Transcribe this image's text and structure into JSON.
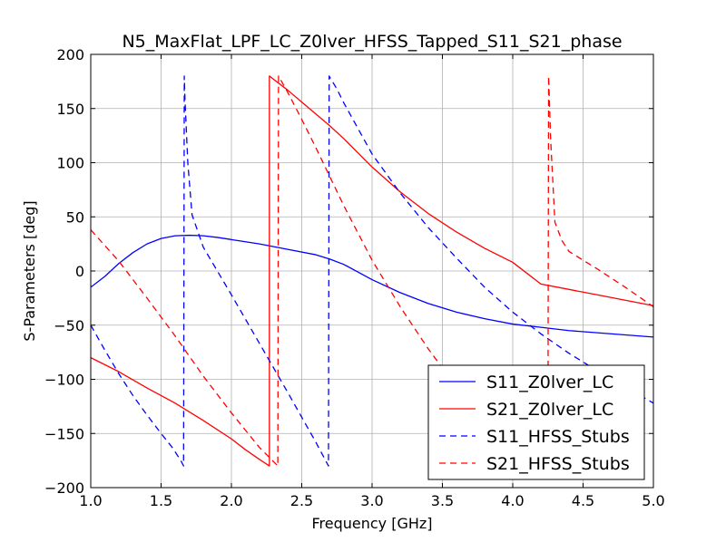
{
  "chart_data": {
    "type": "line",
    "title": "N5_MaxFlat_LPF_LC_Z0lver_HFSS_Tapped_S11_S21_phase",
    "xlabel": "Frequency [GHz]",
    "ylabel": "S-Parameters [deg]",
    "xlim": [
      1.0,
      5.0
    ],
    "ylim": [
      -200,
      200
    ],
    "xticks": [
      1.0,
      1.5,
      2.0,
      2.5,
      3.0,
      3.5,
      4.0,
      4.5,
      5.0
    ],
    "xtick_labels": [
      "1.0",
      "1.5",
      "2.0",
      "2.5",
      "3.0",
      "3.5",
      "4.0",
      "4.5",
      "5.0"
    ],
    "yticks": [
      -200,
      -150,
      -100,
      -50,
      0,
      50,
      100,
      150,
      200
    ],
    "ytick_labels": [
      "−200",
      "−150",
      "−100",
      "−50",
      "0",
      "50",
      "100",
      "150",
      "200"
    ],
    "grid": true,
    "legend_position": "lower-right",
    "series": [
      {
        "name": "S11_Z0lver_LC",
        "color": "#0000ff",
        "style": "solid",
        "x": [
          1.0,
          1.1,
          1.2,
          1.3,
          1.4,
          1.5,
          1.6,
          1.7,
          1.8,
          1.9,
          2.0,
          2.2,
          2.4,
          2.6,
          2.7,
          2.8,
          3.0,
          3.2,
          3.4,
          3.6,
          3.8,
          4.0,
          4.2,
          4.4,
          4.6,
          4.8,
          5.0
        ],
        "y": [
          -15,
          -5,
          7,
          17,
          25,
          30,
          32.5,
          33,
          32.5,
          31,
          29,
          25,
          20,
          15,
          11,
          6,
          -8,
          -20,
          -30,
          -38,
          -44,
          -49,
          -52,
          -55,
          -57,
          -59,
          -61
        ]
      },
      {
        "name": "S21_Z0lver_LC",
        "color": "#ff0000",
        "style": "solid",
        "x": [
          1.0,
          1.2,
          1.4,
          1.6,
          1.8,
          2.0,
          2.1,
          2.2,
          2.27,
          2.27,
          2.3,
          2.4,
          2.5,
          2.6,
          2.7,
          2.8,
          3.0,
          3.2,
          3.4,
          3.6,
          3.8,
          4.0,
          4.2,
          4.4,
          4.6,
          4.8,
          5.0
        ],
        "y": [
          -80,
          -93,
          -108,
          -122,
          -138,
          -155,
          -165,
          -174,
          -180,
          180,
          177,
          167,
          156,
          145,
          134,
          122,
          96,
          73,
          53,
          36,
          21,
          8,
          -12,
          -17,
          -22,
          -27,
          -32
        ]
      },
      {
        "name": "S11_HFSS_Stubs",
        "color": "#0000ff",
        "style": "dashed",
        "x": [
          1.0,
          1.1,
          1.2,
          1.3,
          1.4,
          1.5,
          1.58,
          1.64,
          1.66,
          1.665,
          1.67,
          1.69,
          1.72,
          1.8,
          2.0,
          2.2,
          2.4,
          2.6,
          2.69,
          2.695,
          2.75,
          2.8,
          3.0,
          3.2,
          3.4,
          3.6,
          3.8,
          4.0,
          4.2,
          4.4,
          4.6,
          4.8,
          5.0
        ],
        "y": [
          -50,
          -73,
          -95,
          -115,
          -133,
          -150,
          -163,
          -175,
          -180,
          180,
          158,
          100,
          52,
          22,
          -22,
          -67,
          -112,
          -158,
          -180,
          180,
          168,
          155,
          108,
          72,
          40,
          12,
          -15,
          -38,
          -58,
          -76,
          -92,
          -107,
          -122
        ]
      },
      {
        "name": "S21_HFSS_Stubs",
        "color": "#ff0000",
        "style": "dashed",
        "x": [
          1.0,
          1.2,
          1.4,
          1.6,
          1.8,
          2.0,
          2.2,
          2.33,
          2.335,
          2.4,
          2.5,
          2.6,
          2.7,
          2.8,
          3.0,
          3.2,
          3.4,
          3.6,
          3.8,
          4.0,
          4.1,
          4.2,
          4.25,
          4.255,
          4.27,
          4.3,
          4.35,
          4.4,
          4.6,
          4.8,
          5.0
        ],
        "y": [
          38,
          9,
          -25,
          -60,
          -97,
          -131,
          -163,
          -180,
          180,
          165,
          140,
          114,
          87,
          60,
          10,
          -33,
          -72,
          -107,
          -137,
          -162,
          -173,
          -180,
          -180,
          180,
          120,
          45,
          28,
          18,
          2,
          -15,
          -33
        ]
      }
    ]
  }
}
